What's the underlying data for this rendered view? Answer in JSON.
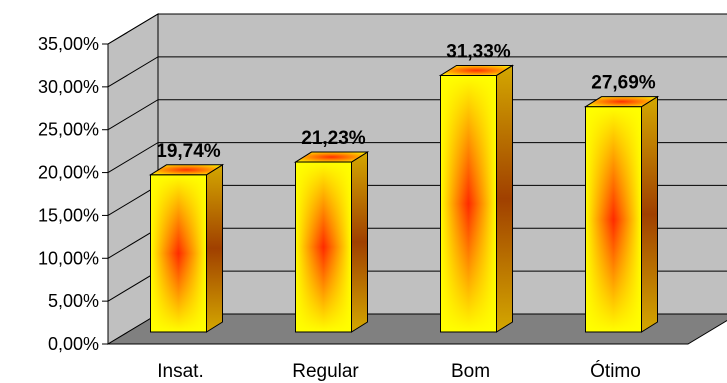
{
  "chart_data": {
    "type": "bar",
    "title": "",
    "xlabel": "",
    "ylabel": "",
    "categories": [
      "Insat.",
      "Regular",
      "Bom",
      "Ótimo"
    ],
    "values": [
      19.74,
      21.23,
      31.33,
      27.69
    ],
    "data_labels": [
      "19,74%",
      "21,23%",
      "31,33%",
      "27,69%"
    ],
    "ylim": [
      0,
      35
    ],
    "y_ticks": [
      0,
      5,
      10,
      15,
      20,
      25,
      30,
      35
    ],
    "y_tick_labels": [
      "0,00%",
      "5,00%",
      "10,00%",
      "15,00%",
      "20,00%",
      "25,00%",
      "30,00%",
      "35,00%"
    ],
    "grid": true,
    "legend": "none",
    "three_d": true,
    "colors": {
      "bar_edge": "#ffff00",
      "bar_center": "#ff2a00",
      "bar_side": "#c89a00",
      "bar_top": "#ffd700",
      "back_wall": "#c0c0c0",
      "floor": "#808080",
      "gridline": "#000000"
    }
  }
}
